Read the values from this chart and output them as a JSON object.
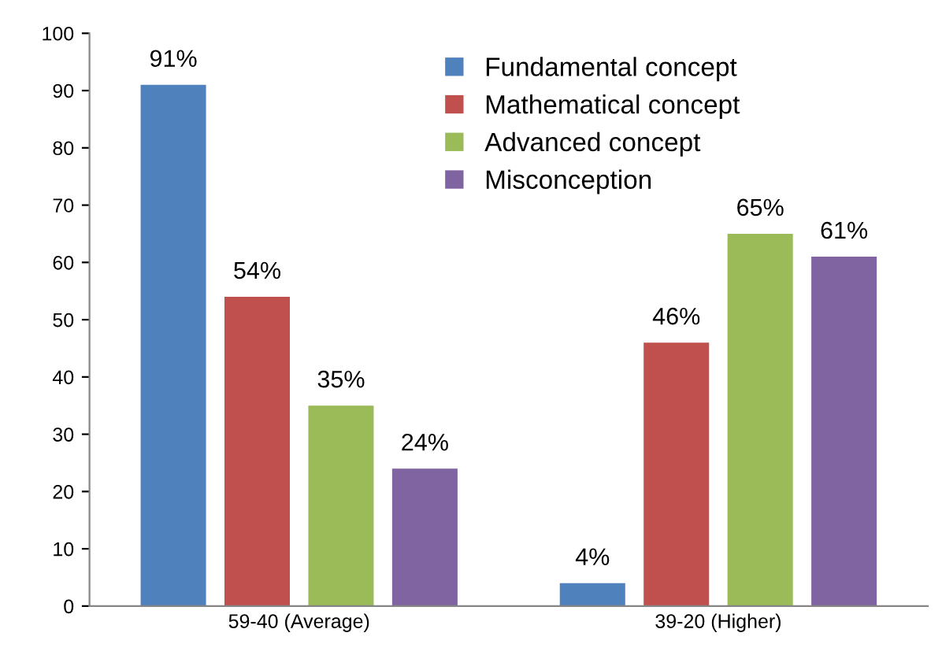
{
  "chart_data": {
    "type": "bar",
    "categories": [
      "59-40 (Average)",
      "39-20 (Higher)"
    ],
    "series": [
      {
        "name": "Fundamental concept",
        "color": "#4f81bd",
        "values": [
          91,
          4
        ],
        "value_labels": [
          "91%",
          "4%"
        ]
      },
      {
        "name": "Mathematical concept",
        "color": "#c0504d",
        "values": [
          54,
          46
        ],
        "value_labels": [
          "54%",
          "46%"
        ]
      },
      {
        "name": "Advanced concept",
        "color": "#9bbb59",
        "values": [
          35,
          65
        ],
        "value_labels": [
          "35%",
          "65%"
        ]
      },
      {
        "name": "Misconception",
        "color": "#8064a2",
        "values": [
          24,
          61
        ],
        "value_labels": [
          "24%",
          "61%"
        ]
      }
    ],
    "ylim": [
      0,
      100
    ],
    "yticks": [
      0,
      10,
      20,
      30,
      40,
      50,
      60,
      70,
      80,
      90,
      100
    ],
    "grid": false,
    "legend": "top"
  }
}
